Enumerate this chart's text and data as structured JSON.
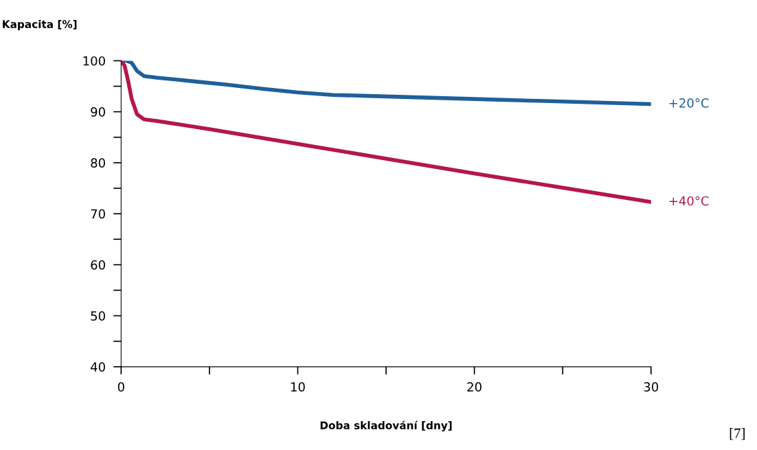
{
  "chart_data": {
    "type": "line",
    "ylabel": "Kapacita [%]",
    "xlabel": "Doba skladování [dny]",
    "xlim": [
      0,
      30
    ],
    "xticks": [
      0,
      {
        "value": 5,
        "label": null
      },
      10,
      {
        "value": 15,
        "label": null
      },
      20,
      {
        "value": 25,
        "label": null
      },
      30
    ],
    "ylim": [
      40,
      100
    ],
    "yticks": [
      40,
      {
        "value": 45,
        "label": null
      },
      50,
      {
        "value": 55,
        "label": null
      },
      60,
      {
        "value": 65,
        "label": null
      },
      70,
      {
        "value": 75,
        "label": null
      },
      80,
      {
        "value": 85,
        "label": null
      },
      90,
      {
        "value": 95,
        "label": null
      },
      100
    ],
    "grid": false,
    "legend": false,
    "marker": "none",
    "line_style": "solid",
    "series": [
      {
        "name": "+20°C",
        "color": "#1f5f9c",
        "x": [
          0,
          0.3,
          0.6,
          0.9,
          1.3,
          2,
          4,
          6,
          8,
          10,
          12,
          14,
          17,
          20,
          24,
          27,
          30
        ],
        "values": [
          100,
          100,
          99.6,
          98,
          97,
          96.7,
          96,
          95.3,
          94.5,
          93.8,
          93.3,
          93.1,
          92.8,
          92.5,
          92.1,
          91.8,
          91.5
        ]
      },
      {
        "name": "+40°C",
        "color": "#b5174a",
        "x": [
          0,
          0.2,
          0.4,
          0.6,
          0.9,
          1.3,
          2,
          5,
          10,
          15,
          20,
          25,
          30
        ],
        "values": [
          100,
          99,
          96,
          92.5,
          89.5,
          88.5,
          88.2,
          86.6,
          83.7,
          80.8,
          77.9,
          75.1,
          72.3
        ]
      }
    ],
    "annotations": [
      "[7]"
    ]
  }
}
